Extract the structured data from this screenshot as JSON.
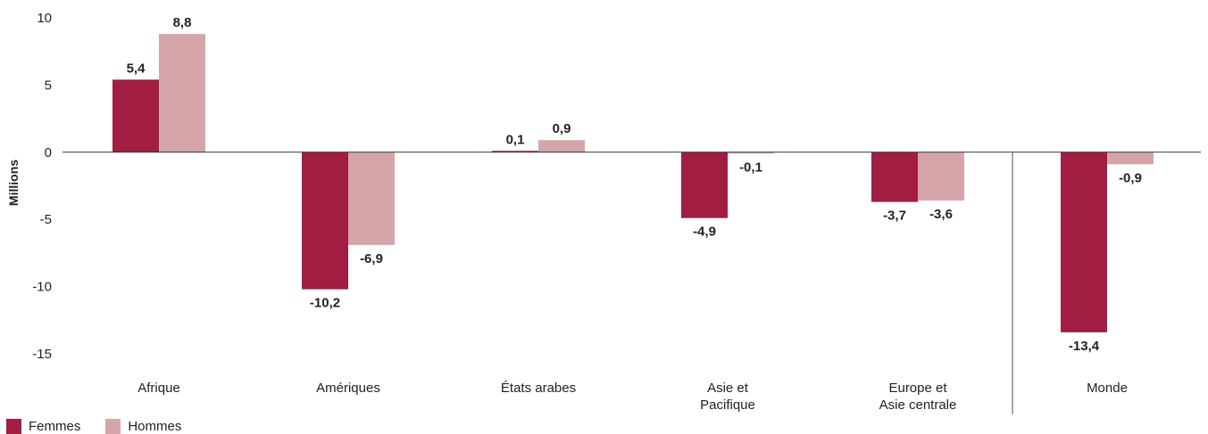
{
  "chart_data": {
    "type": "bar",
    "ylabel": "Millions",
    "ylim": [
      -15,
      10
    ],
    "yticks": [
      10,
      5,
      0,
      -5,
      -10,
      -15
    ],
    "ytick_labels": [
      "10",
      "5",
      "0",
      "-5",
      "-10",
      "-15"
    ],
    "categories": [
      [
        "Afrique"
      ],
      [
        "Amériques"
      ],
      [
        "États arabes"
      ],
      [
        "Asie et",
        "Pacifique"
      ],
      [
        "Europe et",
        "Asie centrale"
      ],
      [
        "Monde"
      ]
    ],
    "separator_before_category": 5,
    "series": [
      {
        "name": "Femmes",
        "color": "#a11d42",
        "values": [
          5.4,
          -10.2,
          0.1,
          -4.9,
          -3.7,
          -13.4
        ],
        "labels": [
          "5,4",
          "-10,2",
          "0,1",
          "-4,9",
          "-3,7",
          "-13,4"
        ]
      },
      {
        "name": "Hommes",
        "color": "#d5a5aa",
        "values": [
          8.8,
          -6.9,
          0.9,
          -0.1,
          -3.6,
          -0.9
        ],
        "labels": [
          "8,8",
          "-6,9",
          "0,9",
          "-0,1",
          "-3,6",
          "-0,9"
        ]
      }
    ],
    "legend_position": "bottom-left"
  }
}
